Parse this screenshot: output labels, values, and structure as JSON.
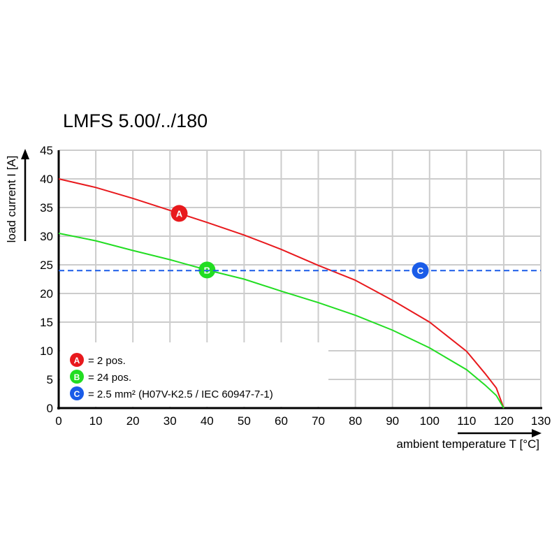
{
  "chart_data": {
    "type": "line",
    "title": "LMFS 5.00/../180",
    "xlabel": "ambient temperature T [°C]",
    "ylabel": "load current I [A]",
    "xlim": [
      0,
      130
    ],
    "ylim": [
      0,
      45
    ],
    "xticks": [
      0,
      10,
      20,
      30,
      40,
      50,
      60,
      70,
      80,
      90,
      100,
      110,
      120,
      130
    ],
    "yticks": [
      0,
      5,
      10,
      15,
      20,
      25,
      30,
      35,
      40,
      45
    ],
    "grid": true,
    "legend_position": "bottom-left",
    "series": [
      {
        "marker": "A",
        "name": "= 2 pos.",
        "color": "#e8191d",
        "style": "solid",
        "marker_x": 32.5,
        "x": [
          0,
          10,
          20,
          30,
          40,
          50,
          60,
          70,
          80,
          90,
          100,
          110,
          115,
          118,
          120
        ],
        "y": [
          40,
          38.5,
          36.6,
          34.5,
          32.4,
          30.2,
          27.7,
          24.9,
          22.3,
          18.8,
          15.0,
          9.9,
          6.0,
          3.5,
          0
        ]
      },
      {
        "marker": "B",
        "name": "= 24 pos.",
        "color": "#22dd22",
        "style": "solid",
        "marker_x": 40,
        "x": [
          0,
          10,
          20,
          30,
          40,
          50,
          60,
          70,
          80,
          90,
          100,
          110,
          115,
          118,
          120
        ],
        "y": [
          30.5,
          29.2,
          27.5,
          25.9,
          24.1,
          22.5,
          20.4,
          18.4,
          16.2,
          13.6,
          10.5,
          6.7,
          4.0,
          2.2,
          0
        ]
      },
      {
        "marker": "C",
        "name": "= 2.5 mm² (H07V-K2.5 / IEC 60947-7-1)",
        "color": "#1a5ce8",
        "style": "dashed",
        "marker_x": 97.5,
        "x": [
          0,
          130
        ],
        "y": [
          24,
          24
        ]
      }
    ]
  }
}
